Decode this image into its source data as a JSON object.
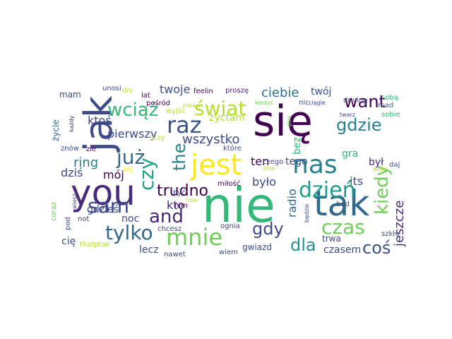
{
  "wordcloud": {
    "words": [
      {
        "text": "się",
        "color": "#440154"
      },
      {
        "text": "nie",
        "color": "#35b779"
      },
      {
        "text": "jak",
        "color": "#3e4a89"
      },
      {
        "text": "you",
        "color": "#472d7b"
      },
      {
        "text": "tak",
        "color": "#31688e"
      },
      {
        "text": "jest",
        "color": "#fde725"
      },
      {
        "text": "nas",
        "color": "#26828e"
      },
      {
        "text": "mnie",
        "color": "#6ece58"
      },
      {
        "text": "raz",
        "color": "#3b528b"
      },
      {
        "text": "świat",
        "color": "#b5de2b"
      },
      {
        "text": "już",
        "color": "#31688e"
      },
      {
        "text": "czy",
        "color": "#20a386"
      },
      {
        "text": "the",
        "color": "#26828e"
      },
      {
        "text": "dzień",
        "color": "#1f9e89"
      },
      {
        "text": "kiedy",
        "color": "#6ece58"
      },
      {
        "text": "tylko",
        "color": "#31688e"
      },
      {
        "text": "sam",
        "color": "#3e4a89"
      },
      {
        "text": "and",
        "color": "#482878"
      },
      {
        "text": "czas",
        "color": "#6ece58"
      },
      {
        "text": "trudno",
        "color": "#440154"
      },
      {
        "text": "gdzie",
        "color": "#26828e"
      },
      {
        "text": "want",
        "color": "#440154"
      },
      {
        "text": "wciąż",
        "color": "#35b779"
      },
      {
        "text": "dla",
        "color": "#21918c"
      },
      {
        "text": "gdy",
        "color": "#3e4a89"
      },
      {
        "text": "coś",
        "color": "#3b528b"
      },
      {
        "text": "wszystko",
        "color": "#3e4a89"
      },
      {
        "text": "jeszcze",
        "color": "#472d7b"
      },
      {
        "text": "ciebie",
        "color": "#2c728e"
      },
      {
        "text": "ring",
        "color": "#26828e"
      },
      {
        "text": "było",
        "color": "#3e4a89"
      },
      {
        "text": "radio",
        "color": "#31688e"
      },
      {
        "text": "kto",
        "color": "#472d7b"
      },
      {
        "text": "dziś",
        "color": "#3e4a89"
      },
      {
        "text": "mój",
        "color": "#440154"
      },
      {
        "text": "twoje",
        "color": "#3b528b"
      },
      {
        "text": "twój",
        "color": "#3b528b"
      },
      {
        "text": "ktoś",
        "color": "#3e4a89"
      },
      {
        "text": "żyćtam",
        "color": "#b5de2b"
      },
      {
        "text": "pierwszy",
        "color": "#3e4a89"
      },
      {
        "text": "ten",
        "color": "#440154"
      },
      {
        "text": "tego",
        "color": "#3e4a89"
      },
      {
        "text": "był",
        "color": "#482878"
      },
      {
        "text": "its",
        "color": "#3b528b"
      },
      {
        "text": "bez",
        "color": "#35b779"
      },
      {
        "text": "gra",
        "color": "#35b779"
      },
      {
        "text": "gdzieś",
        "color": "#3e4a89"
      },
      {
        "text": "noc",
        "color": "#3e4a89"
      },
      {
        "text": "lecz",
        "color": "#3b528b"
      },
      {
        "text": "cię",
        "color": "#3e4a89"
      },
      {
        "text": "gwiazd",
        "color": "#3e4a89"
      },
      {
        "text": "czasem",
        "color": "#3e4a89"
      },
      {
        "text": "trwa",
        "color": "#3e4a89"
      },
      {
        "text": "mam",
        "color": "#3e4a89"
      },
      {
        "text": "życie",
        "color": "#31688e"
      },
      {
        "text": "feelin",
        "color": "#440154"
      },
      {
        "text": "proszę",
        "color": "#482878"
      },
      {
        "text": "unosi",
        "color": "#3e4a89"
      },
      {
        "text": "dni",
        "color": "#b5de2b"
      },
      {
        "text": "lat",
        "color": "#440154"
      },
      {
        "text": "driving",
        "color": "#3e4a89"
      },
      {
        "text": "sobą",
        "color": "#35b779"
      },
      {
        "text": "kiedyś",
        "color": "#6ece58"
      },
      {
        "text": "nic",
        "color": "#3e4a89"
      },
      {
        "text": "ciągle",
        "color": "#3e4a89"
      },
      {
        "text": "mad",
        "color": "#31688e"
      },
      {
        "text": "pośród",
        "color": "#440154"
      },
      {
        "text": "wyjść",
        "color": "#b5de2b"
      },
      {
        "text": "znowu",
        "color": "#b5de2b"
      },
      {
        "text": "głos",
        "color": "#6ece58"
      },
      {
        "text": "twarz",
        "color": "#3e4a89"
      },
      {
        "text": "sobie",
        "color": "#35b779"
      },
      {
        "text": "każdy",
        "color": "#472d7b"
      },
      {
        "text": "przy",
        "color": "#b5de2b"
      },
      {
        "text": "znów",
        "color": "#3e4a89"
      },
      {
        "text": "złe",
        "color": "#440154"
      },
      {
        "text": "które",
        "color": "#3e4a89"
      },
      {
        "text": "czego",
        "color": "#3e4a89"
      },
      {
        "text": "daj",
        "color": "#3e4a89"
      },
      {
        "text": "dnia",
        "color": "#b5de2b"
      },
      {
        "text": "wiatr",
        "color": "#b5de2b"
      },
      {
        "text": "tej",
        "color": "#fde725"
      },
      {
        "text": "być",
        "color": "#3e4a89"
      },
      {
        "text": "miłość",
        "color": "#440154"
      },
      {
        "text": "now",
        "color": "#b5de2b"
      },
      {
        "text": "nim",
        "color": "#440154"
      },
      {
        "text": "bad",
        "color": "#3e4a89"
      },
      {
        "text": "będzie",
        "color": "#3e4a89"
      },
      {
        "text": "wiesz",
        "color": "#3e4a89"
      },
      {
        "text": "coraz",
        "color": "#6ece58"
      },
      {
        "text": "pod",
        "color": "#3e4a89"
      },
      {
        "text": "not",
        "color": "#3e4a89"
      },
      {
        "text": "ognia",
        "color": "#3e4a89"
      },
      {
        "text": "chcesz",
        "color": "#3e4a89"
      },
      {
        "text": "szkło",
        "color": "#3e4a89"
      },
      {
        "text": "thatptak",
        "color": "#b5de2b"
      },
      {
        "text": "nawet",
        "color": "#3e4a89"
      },
      {
        "text": "wiem",
        "color": "#3e4a89"
      }
    ]
  }
}
